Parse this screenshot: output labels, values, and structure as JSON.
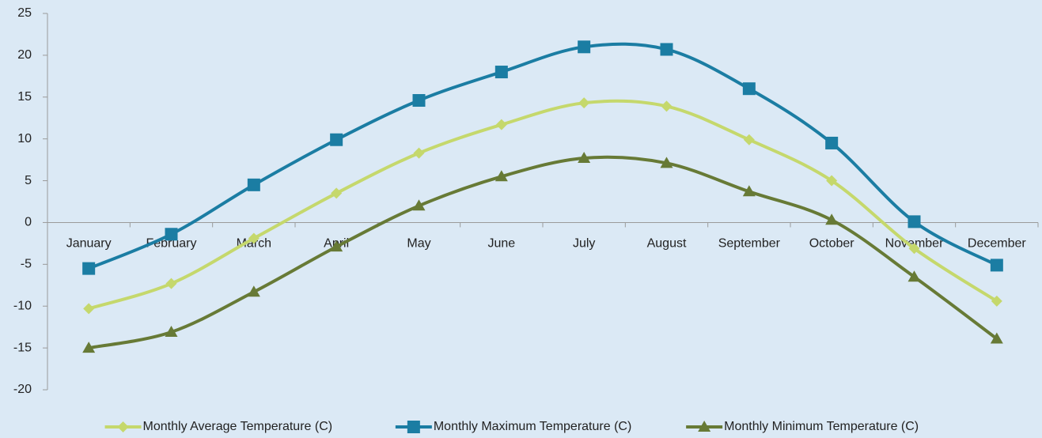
{
  "chart_data": {
    "type": "line",
    "categories": [
      "January",
      "February",
      "March",
      "April",
      "May",
      "June",
      "July",
      "August",
      "September",
      "October",
      "November",
      "December"
    ],
    "series": [
      {
        "name": "Monthly Average Temperature (C)",
        "color": "#c5d86c",
        "marker": "diamond",
        "values": [
          -10.3,
          -7.3,
          -1.9,
          3.5,
          8.3,
          11.7,
          14.3,
          13.9,
          9.9,
          5,
          -3.1,
          -9.4
        ]
      },
      {
        "name": "Monthly Maximum Temperature (C)",
        "color": "#1b7da3",
        "marker": "square",
        "values": [
          -5.5,
          -1.4,
          4.5,
          9.9,
          14.6,
          18,
          21,
          20.7,
          16,
          9.5,
          0.1,
          -5.1
        ]
      },
      {
        "name": "Monthly Minimum Temperature (C)",
        "color": "#677a36",
        "marker": "triangle",
        "values": [
          -15,
          -13.1,
          -8.3,
          -2.9,
          2,
          5.5,
          7.7,
          7.1,
          3.7,
          0.3,
          -6.5,
          -13.9
        ]
      }
    ],
    "ylim": [
      -20,
      25
    ],
    "yticks": [
      -20,
      -15,
      -10,
      -5,
      0,
      5,
      10,
      15,
      20,
      25
    ],
    "smooth": true,
    "legend": "bottom"
  }
}
